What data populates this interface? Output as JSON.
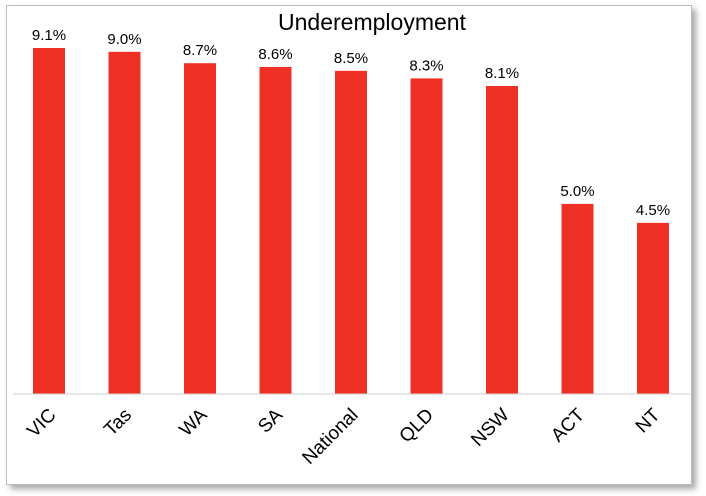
{
  "chart_data": {
    "type": "bar",
    "title": "Underemployment",
    "categories": [
      "VIC",
      "Tas",
      "WA",
      "SA",
      "National",
      "QLD",
      "NSW",
      "ACT",
      "NT"
    ],
    "values": [
      9.1,
      9.0,
      8.7,
      8.6,
      8.5,
      8.3,
      8.1,
      5.0,
      4.5
    ],
    "data_labels": [
      "9.1%",
      "9.0%",
      "8.7%",
      "8.6%",
      "8.5%",
      "8.3%",
      "8.1%",
      "5.0%",
      "4.5%"
    ],
    "xlabel": "",
    "ylabel": "",
    "ylim": [
      0,
      9.1
    ],
    "grid": false,
    "legend": "none",
    "bar_color": "#ee3124"
  }
}
